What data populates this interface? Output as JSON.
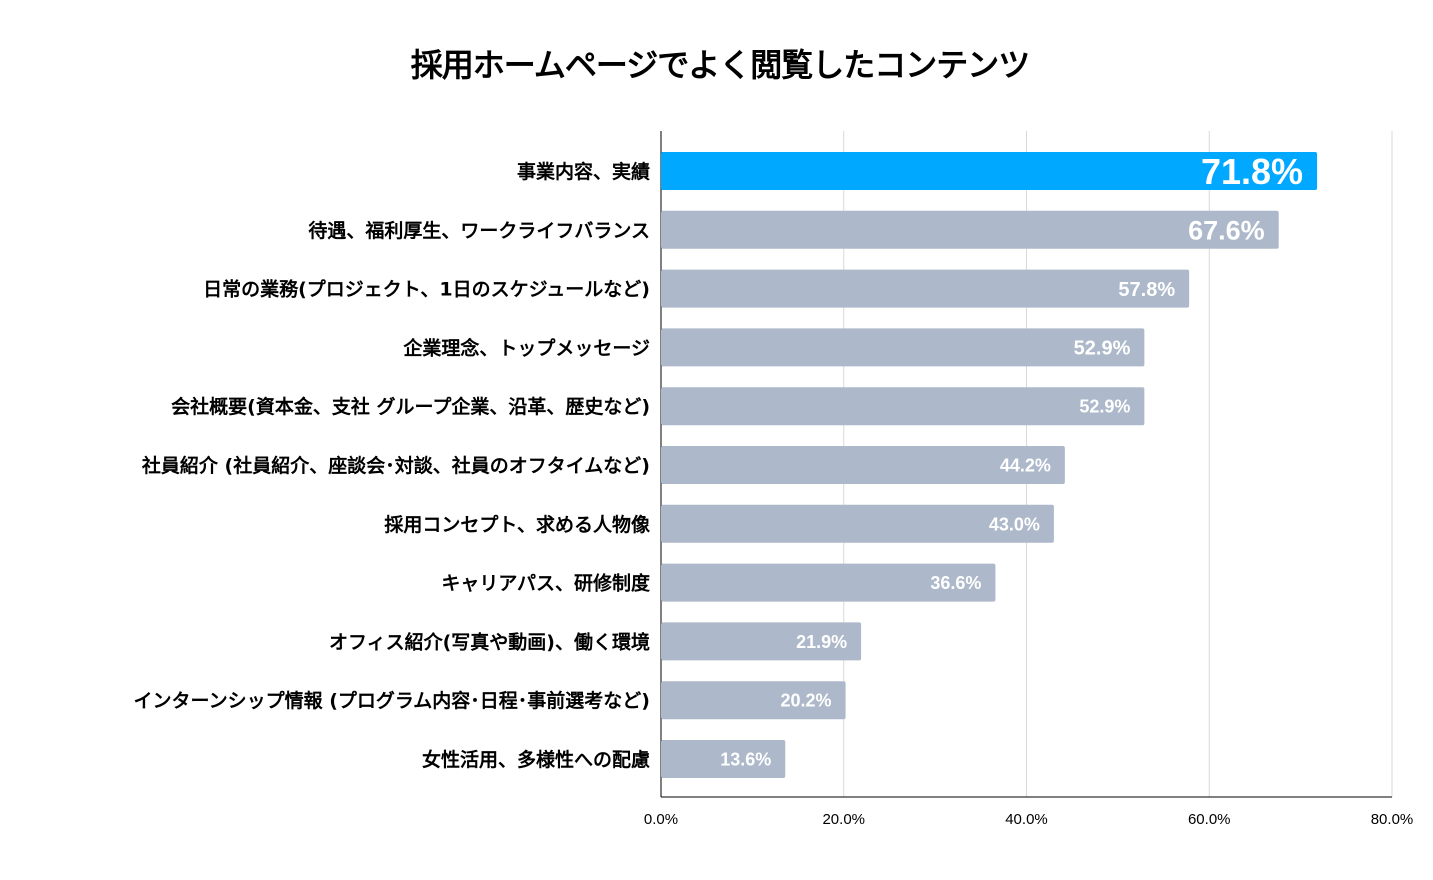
{
  "chart_data": {
    "type": "bar",
    "orientation": "horizontal",
    "title": "採用ホームページでよく閲覧したコンテンツ",
    "categories": [
      "事業内容、実績",
      "待遇、福利厚生、ワークライフバランス",
      "日常の業務(プロジェクト、1日のスケジュールなど)",
      "企業理念、トップメッセージ",
      "会社概要(資本金、支社 グループ企業、沿革、歴史など)",
      "社員紹介 (社員紹介、座談会･対談、社員のオフタイムなど)",
      "採用コンセプト、求める人物像",
      "キャリアパス、研修制度",
      "オフィス紹介(写真や動画)、働く環境",
      "インターンシップ情報 (プログラム内容･日程･事前選考など)",
      "女性活用、多様性への配慮"
    ],
    "values": [
      71.8,
      67.6,
      57.8,
      52.9,
      52.9,
      44.2,
      43.0,
      36.6,
      21.9,
      20.2,
      13.6
    ],
    "value_labels": [
      "71.8%",
      "67.6%",
      "57.8%",
      "52.9%",
      "52.9%",
      "44.2%",
      "43.0%",
      "36.6%",
      "21.9%",
      "20.2%",
      "13.6%"
    ],
    "xlim": [
      0,
      80
    ],
    "x_ticks": [
      0,
      20,
      40,
      60,
      80
    ],
    "x_tick_labels": [
      "0.0%",
      "20.0%",
      "40.0%",
      "60.0%",
      "80.0%"
    ],
    "grid": "vertical",
    "highlight_index": 0,
    "colors": {
      "highlight": "#00A8FF",
      "bar": "#ADB9CA",
      "grid": "#D9D9D9",
      "axis": "#000000"
    }
  }
}
